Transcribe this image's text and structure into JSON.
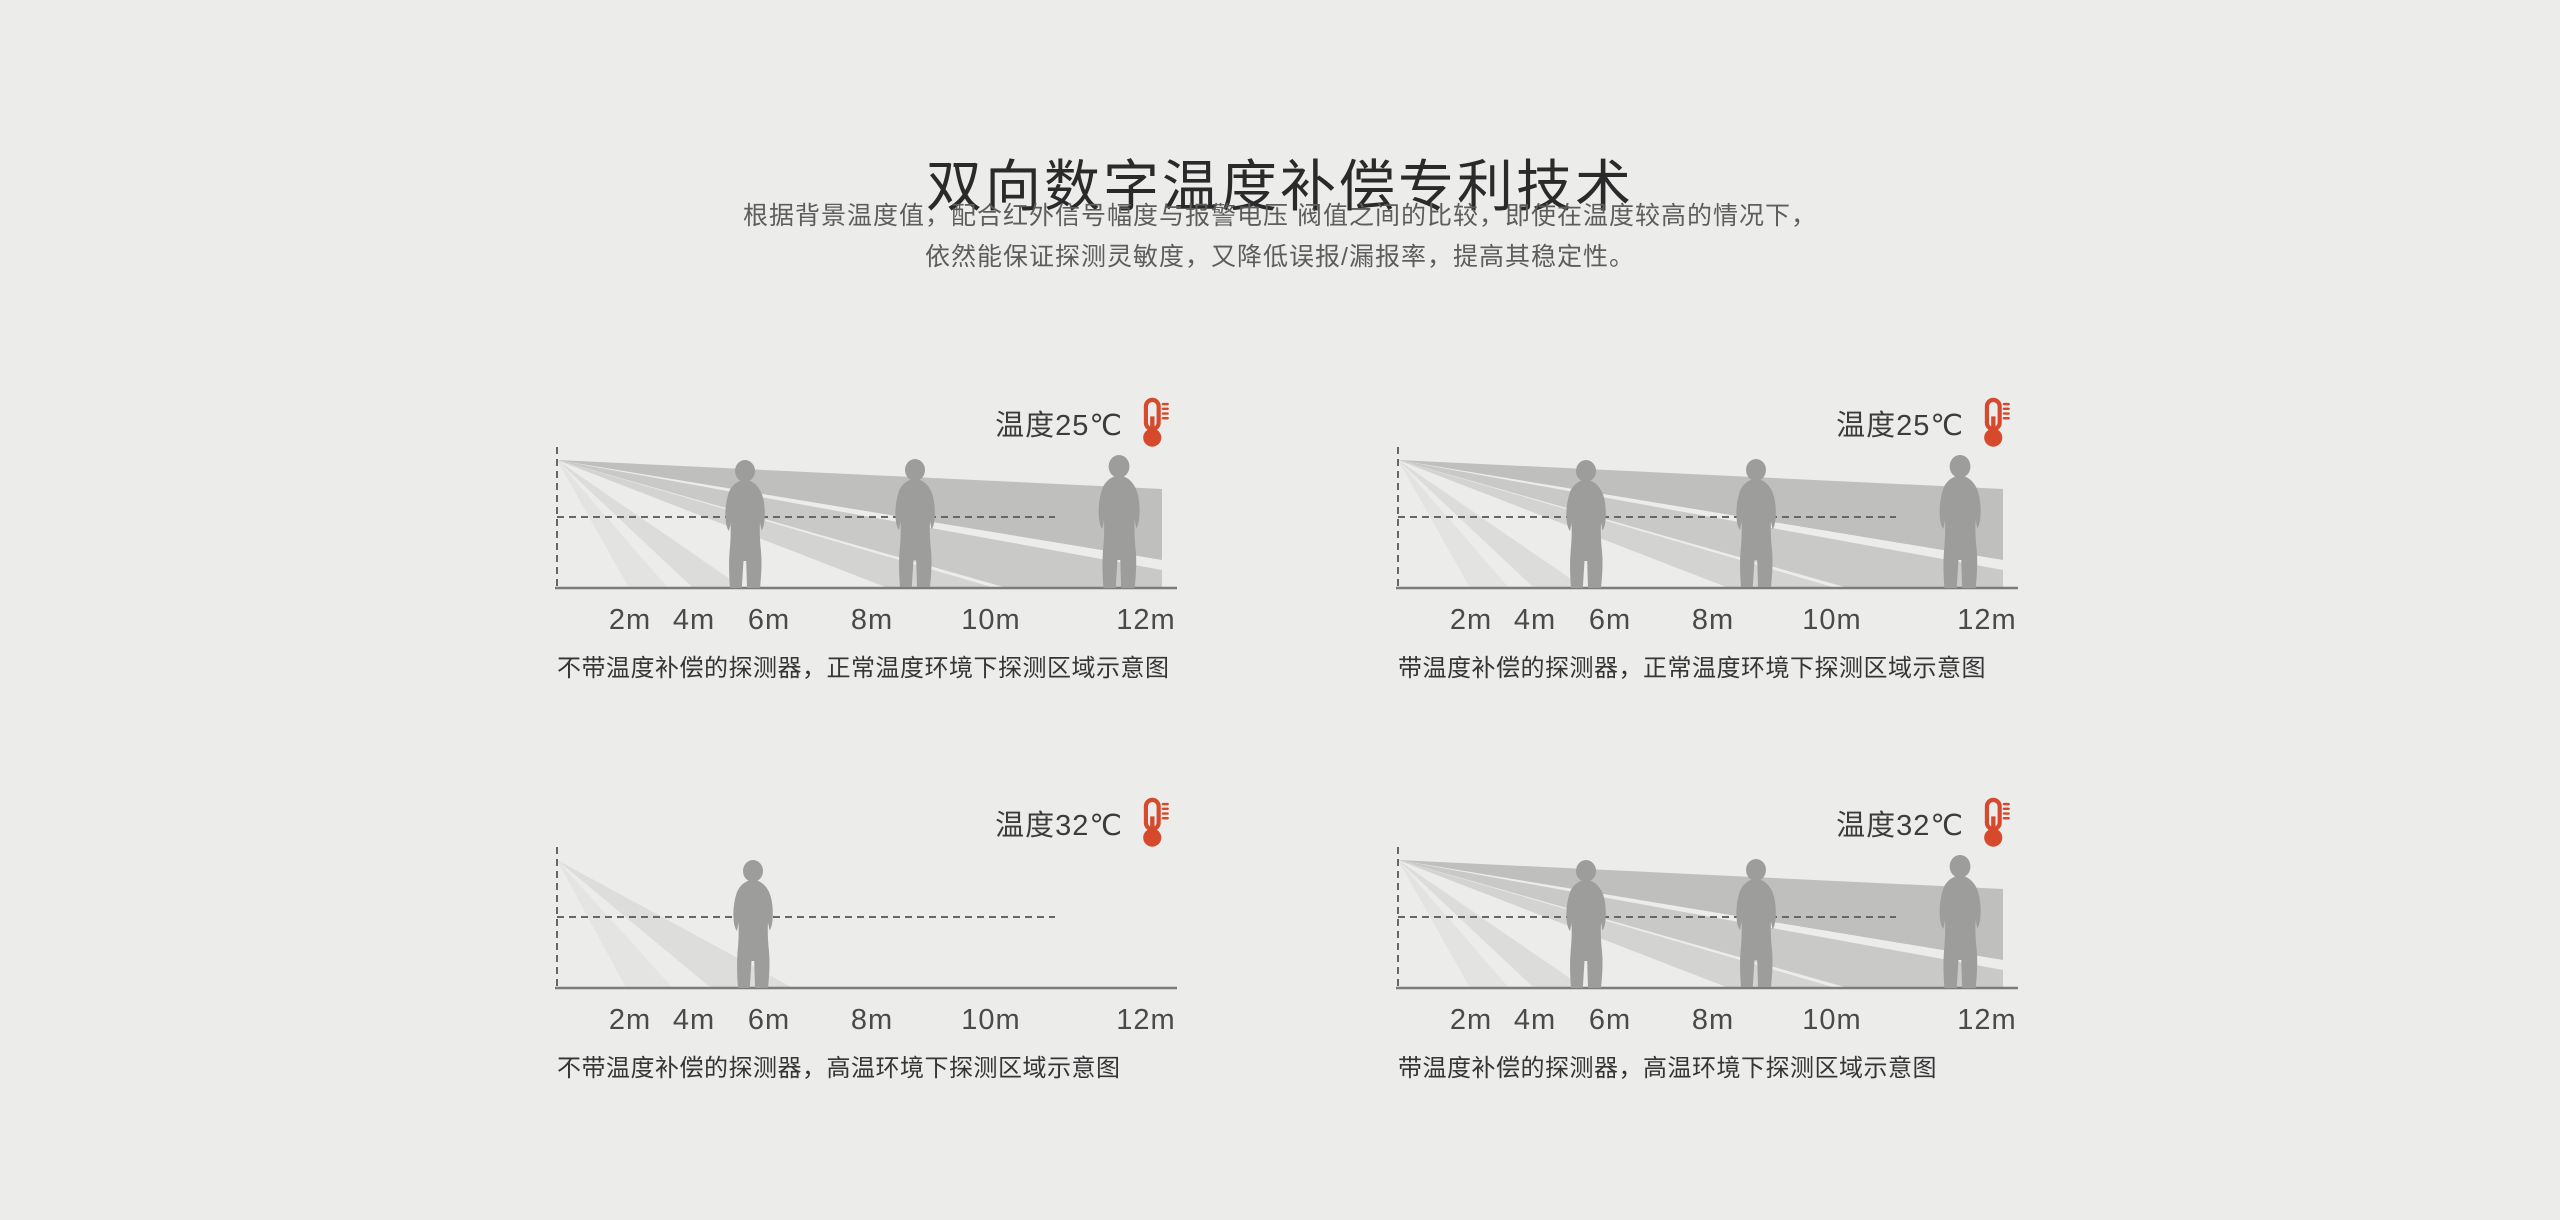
{
  "page": {
    "background_color": "#ececeb",
    "title": "双向数字温度补偿专利技术",
    "subtitle_line1": "根据背景温度值，配合红外信号幅度与报警电压 阀值之间的比较，即使在温度较高的情况下，",
    "subtitle_line2": "依然能保证探测灵敏度，又降低误报/漏报率，提高其稳定性。"
  },
  "colors": {
    "accent_red": "#d7492c",
    "person_gray": "#9d9d9b",
    "beam_dark": "#bfbfbd",
    "beam_light": "#e3e3e1"
  },
  "panels": [
    {
      "id": "no-compensation-normal-temp",
      "temperature_label": "温度25℃",
      "distance_labels": [
        "2m",
        "4m",
        "6m",
        "8m",
        "10m",
        "12m"
      ],
      "caption": "不带温度补偿的探测器，正常温度环境下探测区域示意图",
      "variant": "full",
      "persons_shown": 3
    },
    {
      "id": "with-compensation-normal-temp",
      "temperature_label": "温度25℃",
      "distance_labels": [
        "2m",
        "4m",
        "6m",
        "8m",
        "10m",
        "12m"
      ],
      "caption": "带温度补偿的探测器，正常温度环境下探测区域示意图",
      "variant": "full",
      "persons_shown": 3
    },
    {
      "id": "no-compensation-high-temp",
      "temperature_label": "温度32℃",
      "distance_labels": [
        "2m",
        "4m",
        "6m",
        "8m",
        "10m",
        "12m"
      ],
      "caption": "不带温度补偿的探测器，高温环境下探测区域示意图",
      "variant": "reduced",
      "persons_shown": 1
    },
    {
      "id": "with-compensation-high-temp",
      "temperature_label": "温度32℃",
      "distance_labels": [
        "2m",
        "4m",
        "6m",
        "8m",
        "10m",
        "12m"
      ],
      "caption": "带温度补偿的探测器，高温环境下探测区域示意图",
      "variant": "full",
      "persons_shown": 3
    }
  ]
}
